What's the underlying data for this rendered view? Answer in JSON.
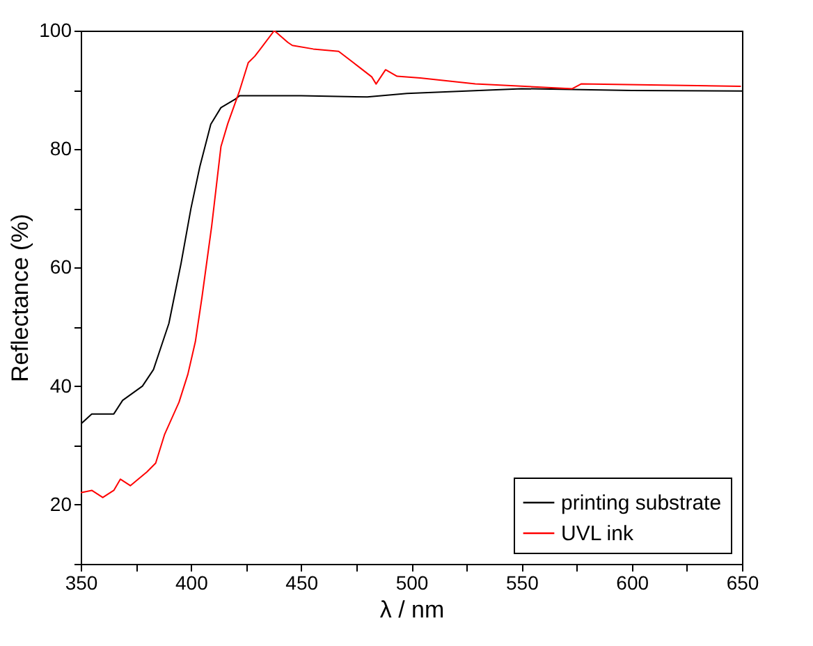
{
  "chart_data": {
    "type": "line",
    "xlabel": "λ / nm",
    "ylabel": "Reflectance (%)",
    "xlim": [
      350,
      650
    ],
    "ylim": [
      10,
      100
    ],
    "xticks": [
      350,
      {
        "value": 375,
        "label": null
      },
      400,
      {
        "value": 425,
        "label": null
      },
      450,
      {
        "value": 475,
        "label": null
      },
      500,
      {
        "value": 525,
        "label": null
      },
      550,
      {
        "value": 575,
        "label": null
      },
      600,
      {
        "value": 625,
        "label": null
      },
      650
    ],
    "yticks": [
      {
        "value": 10,
        "label": null
      },
      20,
      {
        "value": 30,
        "label": null
      },
      40,
      {
        "value": 50,
        "label": null
      },
      60,
      {
        "value": 70,
        "label": null
      },
      80,
      {
        "value": 90,
        "label": null
      },
      100
    ],
    "grid": false,
    "legend": "bottom right",
    "line_style": "solid",
    "marker": "none",
    "series": [
      {
        "name": "printing substrate",
        "color": "#000000",
        "x": [
          350,
          355,
          365,
          369,
          378,
          383,
          390,
          395.5,
          400,
          404,
          409,
          413.6,
          420,
          422,
          450,
          480,
          498,
          550,
          600,
          650
        ],
        "values": [
          33.6,
          35.3,
          35.3,
          37.6,
          40,
          42.8,
          50.6,
          60.7,
          70,
          77,
          84.2,
          87,
          88.4,
          89,
          89,
          88.8,
          89.4,
          90.2,
          89.9,
          89.8
        ]
      },
      {
        "name": "UVL ink",
        "color": "#ff0000",
        "x": [
          350,
          355,
          360,
          365,
          368,
          372.5,
          380,
          384,
          388,
          394.6,
          398.6,
          402,
          405,
          409.4,
          413.6,
          416.7,
          422,
          426,
          429,
          431.5,
          437.8,
          444,
          446,
          455.5,
          467,
          476.8,
          482,
          484,
          488.3,
          493.5,
          504,
          529,
          573,
          577,
          649.5
        ],
        "values": [
          22,
          22.4,
          21.2,
          22.4,
          24.3,
          23.2,
          25.5,
          27,
          31.8,
          37.3,
          42,
          47.5,
          55,
          67,
          80.4,
          84.3,
          89.8,
          94.6,
          95.7,
          96.9,
          100,
          98,
          97.5,
          96.9,
          96.5,
          93.7,
          92.2,
          91,
          93.4,
          92.3,
          92,
          91,
          90.2,
          91,
          90.6
        ]
      }
    ]
  }
}
